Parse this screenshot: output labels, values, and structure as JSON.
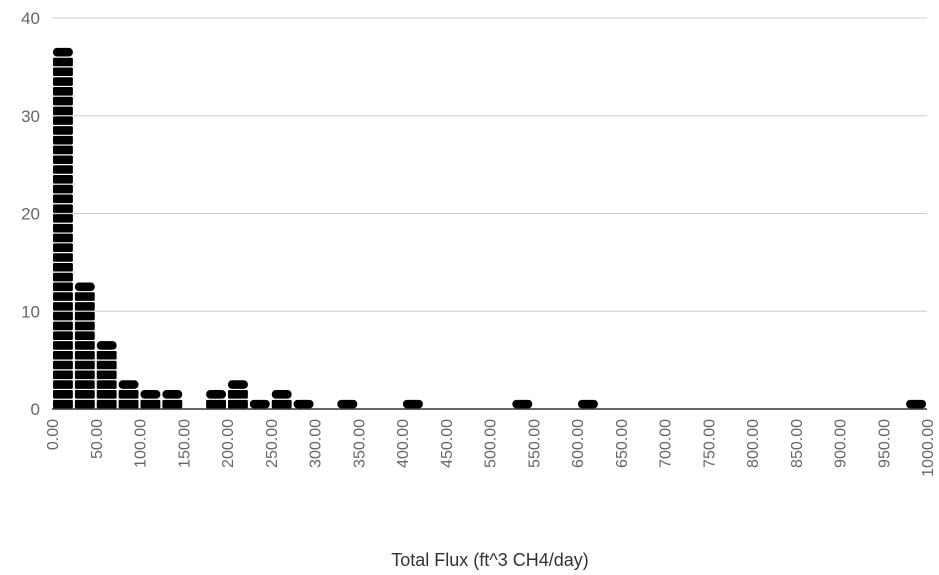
{
  "chart_data": {
    "type": "bar",
    "subtype": "histogram-stacked-units",
    "title": "",
    "xlabel": "Total Flux (ft^3 CH4/day)",
    "ylabel": "",
    "ylim": [
      0,
      40
    ],
    "y_ticks": [
      "0",
      "10",
      "20",
      "30",
      "40"
    ],
    "x_ticks": [
      "0.00",
      "50.00",
      "100.00",
      "150.00",
      "200.00",
      "250.00",
      "300.00",
      "350.00",
      "400.00",
      "450.00",
      "500.00",
      "550.00",
      "600.00",
      "650.00",
      "700.00",
      "750.00",
      "800.00",
      "850.00",
      "900.00",
      "950.00",
      "1000.00"
    ],
    "bin_width": 25,
    "bins": [
      {
        "start": 0,
        "count": 37
      },
      {
        "start": 25,
        "count": 13
      },
      {
        "start": 50,
        "count": 7
      },
      {
        "start": 75,
        "count": 3
      },
      {
        "start": 100,
        "count": 2
      },
      {
        "start": 125,
        "count": 2
      },
      {
        "start": 175,
        "count": 2
      },
      {
        "start": 200,
        "count": 3
      },
      {
        "start": 225,
        "count": 1
      },
      {
        "start": 250,
        "count": 2
      },
      {
        "start": 275,
        "count": 1
      },
      {
        "start": 325,
        "count": 1
      },
      {
        "start": 400,
        "count": 1
      },
      {
        "start": 525,
        "count": 1
      },
      {
        "start": 600,
        "count": 1
      },
      {
        "start": 975,
        "count": 1
      }
    ],
    "grid": true,
    "legend": "none",
    "colors": {
      "bar": "#000000",
      "grid": "#cccccc",
      "axis": "#333333"
    }
  }
}
